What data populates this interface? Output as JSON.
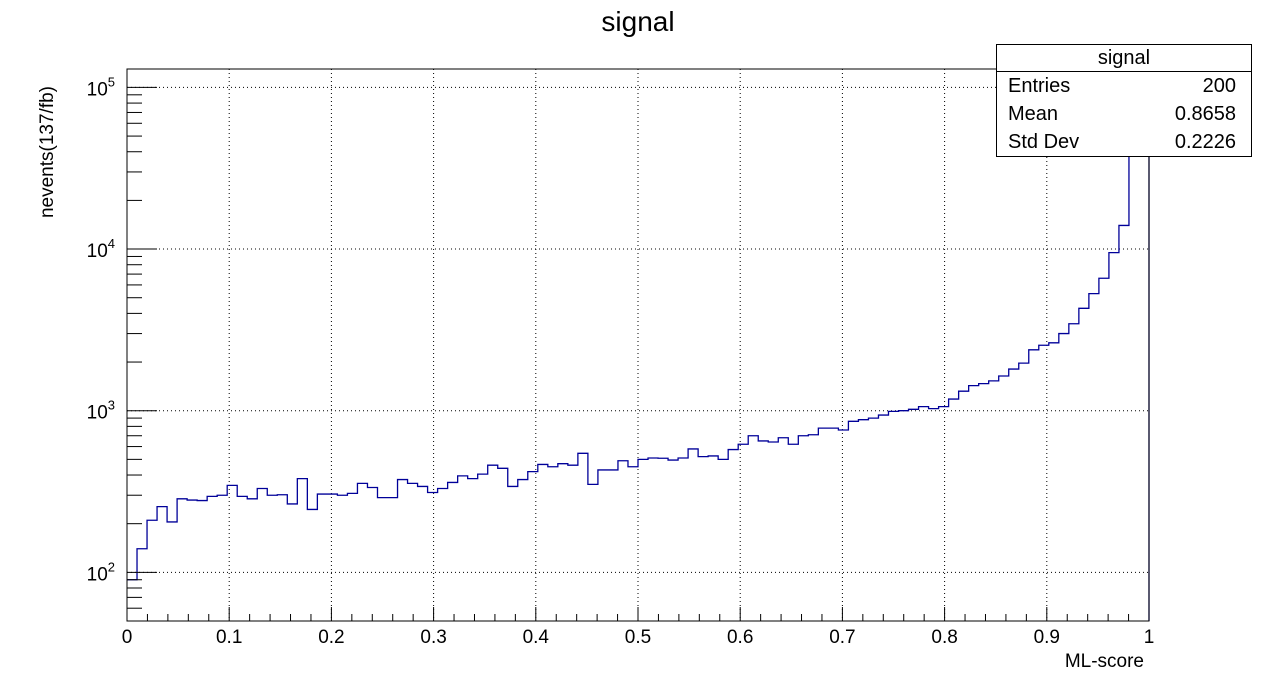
{
  "chart_data": {
    "type": "histogram",
    "title": "signal",
    "xlabel": "ML-score",
    "ylabel": "nevents(137/fb)",
    "xlim": [
      0,
      1
    ],
    "ylim": [
      50,
      130000
    ],
    "log_y": true,
    "grid": true,
    "line_color": "#000099",
    "x_ticks": [
      "0",
      "0.1",
      "0.2",
      "0.3",
      "0.4",
      "0.5",
      "0.6",
      "0.7",
      "0.8",
      "0.9",
      "1"
    ],
    "y_ticks": [
      {
        "value": 100,
        "base": "10",
        "exp": "2"
      },
      {
        "value": 1000,
        "base": "10",
        "exp": "3"
      },
      {
        "value": 10000,
        "base": "10",
        "exp": "4"
      },
      {
        "value": 100000,
        "base": "10",
        "exp": "5"
      }
    ],
    "bin_edges": [
      0,
      1
    ],
    "bin_values": [
      90,
      140,
      210,
      255,
      205,
      285,
      280,
      278,
      295,
      300,
      345,
      295,
      285,
      330,
      300,
      302,
      265,
      380,
      245,
      305,
      305,
      300,
      308,
      355,
      335,
      290,
      290,
      375,
      355,
      340,
      312,
      330,
      360,
      395,
      380,
      405,
      460,
      440,
      340,
      375,
      420,
      465,
      450,
      470,
      460,
      545,
      350,
      430,
      430,
      490,
      450,
      500,
      510,
      508,
      495,
      510,
      580,
      520,
      525,
      500,
      575,
      620,
      700,
      650,
      640,
      680,
      620,
      700,
      710,
      780,
      780,
      760,
      860,
      880,
      900,
      940,
      990,
      1000,
      1020,
      1060,
      1030,
      1060,
      1180,
      1320,
      1430,
      1470,
      1530,
      1640,
      1810,
      1970,
      2380,
      2540,
      2630,
      3000,
      3450,
      4300,
      5300,
      6600,
      9500,
      14000,
      43000,
      130000
    ],
    "stats_box": {
      "title": "signal",
      "rows": [
        {
          "label": "Entries",
          "value": "200"
        },
        {
          "label": "Mean",
          "value": "0.8658"
        },
        {
          "label": "Std Dev",
          "value": "0.2226"
        }
      ]
    }
  }
}
